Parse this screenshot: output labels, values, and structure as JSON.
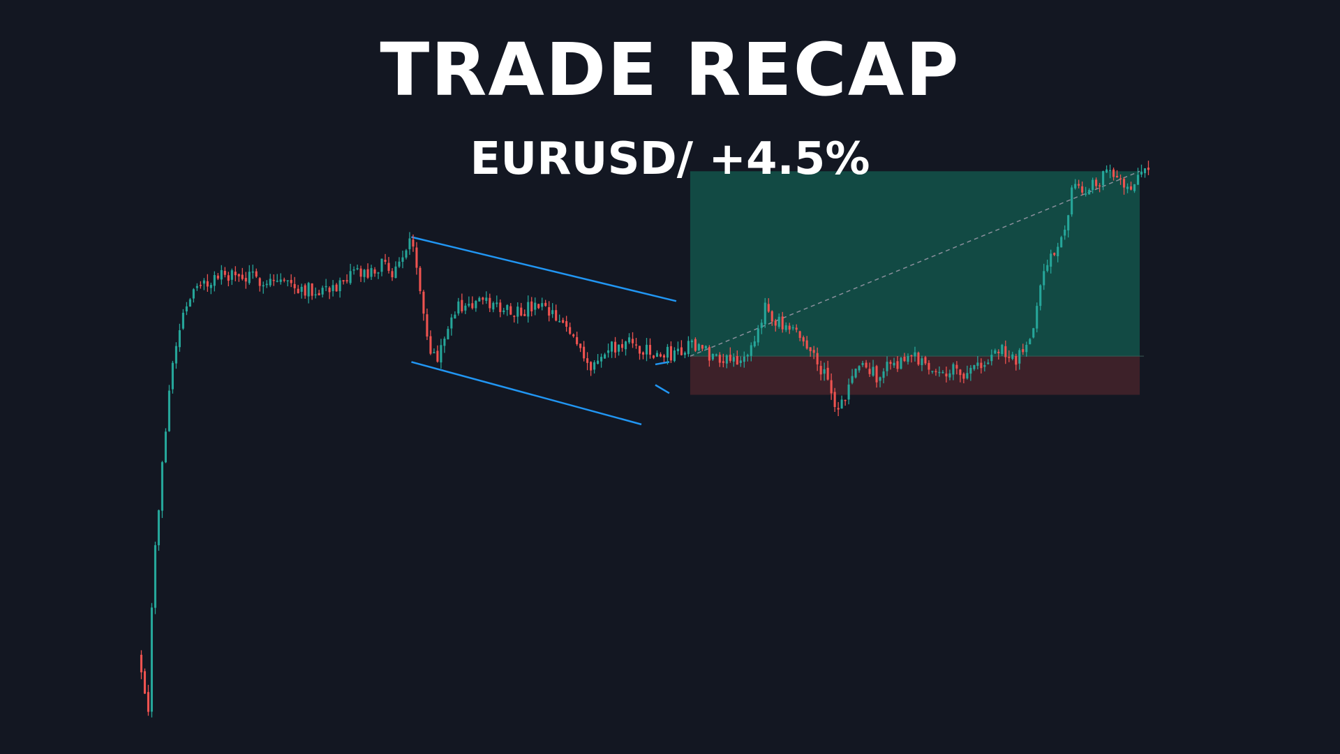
{
  "header": {
    "title": "TRADE RECAP",
    "subtitle": "EURUSD/ +4.5%"
  },
  "colors": {
    "background": "#131722",
    "bullish": "#26a69a",
    "bearish": "#ef5350",
    "channel_line": "#2196f3",
    "profit_zone": "#124a44",
    "loss_zone": "#3d2129",
    "target_line": "#8a8f9c"
  },
  "chart_data": {
    "type": "candlestick",
    "title": "",
    "xlabel": "",
    "ylabel": "",
    "x_range": [
      0,
      290
    ],
    "ylim": [
      0.5,
      7.5
    ],
    "grid": false,
    "legend": "none",
    "seed": 7,
    "price_path": [
      [
        0,
        1.3
      ],
      [
        1,
        1.15
      ],
      [
        3,
        0.7
      ],
      [
        4,
        1.9
      ],
      [
        5,
        2.6
      ],
      [
        7,
        3.6
      ],
      [
        9,
        4.6
      ],
      [
        11,
        5.1
      ],
      [
        13,
        5.5
      ],
      [
        15,
        5.7
      ],
      [
        20,
        5.85
      ],
      [
        25,
        5.95
      ],
      [
        30,
        5.9
      ],
      [
        40,
        5.88
      ],
      [
        50,
        5.75
      ],
      [
        55,
        5.8
      ],
      [
        60,
        5.8
      ],
      [
        62,
        6.0
      ],
      [
        66,
        5.92
      ],
      [
        70,
        6.05
      ],
      [
        74,
        5.98
      ],
      [
        76,
        6.2
      ],
      [
        78,
        6.35
      ],
      [
        80,
        6.05
      ],
      [
        82,
        5.55
      ],
      [
        84,
        5.0
      ],
      [
        86,
        4.95
      ],
      [
        88,
        5.25
      ],
      [
        92,
        5.55
      ],
      [
        98,
        5.6
      ],
      [
        105,
        5.55
      ],
      [
        110,
        5.5
      ],
      [
        115,
        5.55
      ],
      [
        120,
        5.4
      ],
      [
        125,
        5.2
      ],
      [
        128,
        5.0
      ],
      [
        130,
        4.8
      ],
      [
        132,
        4.88
      ],
      [
        136,
        5.05
      ],
      [
        142,
        5.1
      ],
      [
        148,
        4.95
      ],
      [
        155,
        5.0
      ],
      [
        160,
        5.1
      ],
      [
        165,
        4.95
      ],
      [
        170,
        4.95
      ],
      [
        175,
        4.9
      ],
      [
        178,
        5.2
      ],
      [
        180,
        5.6
      ],
      [
        182,
        5.45
      ],
      [
        186,
        5.25
      ],
      [
        190,
        5.2
      ],
      [
        194,
        4.95
      ],
      [
        197,
        4.75
      ],
      [
        200,
        4.3
      ],
      [
        203,
        4.4
      ],
      [
        205,
        4.75
      ],
      [
        208,
        4.82
      ],
      [
        212,
        4.72
      ],
      [
        216,
        4.85
      ],
      [
        222,
        4.95
      ],
      [
        228,
        4.82
      ],
      [
        236,
        4.75
      ],
      [
        240,
        4.8
      ],
      [
        244,
        4.85
      ],
      [
        246,
        5.05
      ],
      [
        252,
        4.9
      ],
      [
        256,
        5.1
      ],
      [
        258,
        5.6
      ],
      [
        260,
        6.0
      ],
      [
        264,
        6.3
      ],
      [
        266,
        6.55
      ],
      [
        268,
        6.95
      ],
      [
        272,
        7.0
      ],
      [
        278,
        7.15
      ],
      [
        282,
        7.1
      ],
      [
        285,
        7.05
      ],
      [
        288,
        7.2
      ]
    ],
    "channel": {
      "upper": [
        [
          78,
          6.4
        ],
        [
          154,
          5.62
        ]
      ],
      "lower": [
        [
          78,
          4.88
        ],
        [
          144,
          4.12
        ]
      ]
    },
    "wedge": {
      "upper": [
        [
          148,
          4.85
        ],
        [
          152,
          4.88
        ]
      ],
      "lower": [
        [
          148,
          4.6
        ],
        [
          152,
          4.5
        ]
      ]
    },
    "trade": {
      "entry_x": 158,
      "exit_x": 287,
      "entry_price": 4.95,
      "target_price": 7.2,
      "stop_price": 4.48
    }
  }
}
